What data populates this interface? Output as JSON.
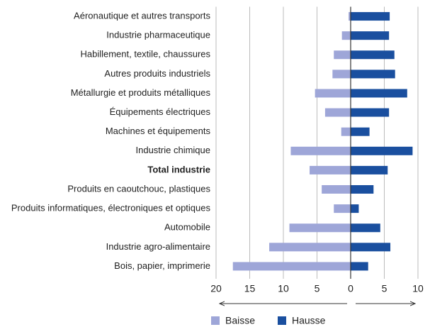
{
  "chart_data": {
    "type": "diverging-bar",
    "categories": [
      "Aéronautique et autres transports",
      "Industrie pharmaceutique",
      "Habillement, textile, chaussures",
      "Autres produits industriels",
      "Métallurgie et produits métalliques",
      "Équipements électriques",
      "Machines et équipements",
      "Industrie chimique",
      "Total industrie",
      "Produits en caoutchouc, plastiques",
      "Produits informatiques, électroniques et optiques",
      "Automobile",
      "Industrie agro-alimentaire",
      "Bois, papier, imprimerie"
    ],
    "bold_categories": [
      8
    ],
    "series": [
      {
        "name": "Baisse",
        "color": "#9ea6d8",
        "values": [
          -0.3,
          -1.3,
          -2.5,
          -2.7,
          -5.3,
          -3.8,
          -1.4,
          -8.9,
          -6.1,
          -4.3,
          -2.5,
          -9.1,
          -12.1,
          -17.5
        ]
      },
      {
        "name": "Hausse",
        "color": "#1a4f9f",
        "values": [
          5.8,
          5.7,
          6.5,
          6.6,
          8.4,
          5.7,
          2.8,
          9.2,
          5.5,
          3.4,
          1.2,
          4.4,
          5.9,
          2.6
        ]
      }
    ],
    "xlim": [
      -20,
      10
    ],
    "xticks": [
      {
        "value": -20,
        "label": "20"
      },
      {
        "value": -15,
        "label": "15"
      },
      {
        "value": -10,
        "label": "10"
      },
      {
        "value": -5,
        "label": "5"
      },
      0,
      5,
      10
    ],
    "grid": true
  }
}
